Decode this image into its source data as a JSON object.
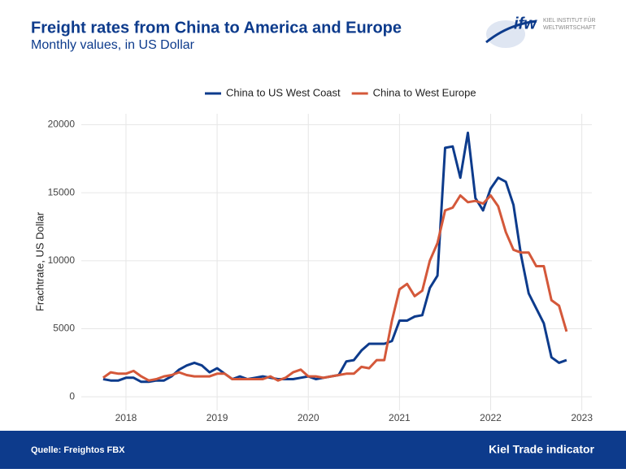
{
  "header": {
    "title": "Freight rates from China to America and Europe",
    "subtitle": "Monthly values, in US Dollar",
    "logo": "ifw",
    "logo_text_1": "KIEL INSTITUT FÜR",
    "logo_text_2": "WELTWIRTSCHAFT"
  },
  "footer": {
    "source": "Quelle: Freightos FBX",
    "brand": "Kiel Trade indicator"
  },
  "chart_data": {
    "type": "line",
    "ylabel": "Frachtrate, US Dollar",
    "grid": true,
    "legend": "top",
    "x": [
      2017.75,
      2017.833,
      2017.917,
      2018,
      2018.083,
      2018.167,
      2018.25,
      2018.333,
      2018.417,
      2018.5,
      2018.583,
      2018.667,
      2018.75,
      2018.833,
      2018.917,
      2019,
      2019.083,
      2019.167,
      2019.25,
      2019.333,
      2019.417,
      2019.5,
      2019.583,
      2019.667,
      2019.75,
      2019.833,
      2019.917,
      2020,
      2020.083,
      2020.167,
      2020.25,
      2020.333,
      2020.417,
      2020.5,
      2020.583,
      2020.667,
      2020.75,
      2020.833,
      2020.917,
      2021,
      2021.083,
      2021.167,
      2021.25,
      2021.333,
      2021.417,
      2021.5,
      2021.583,
      2021.667,
      2021.75,
      2021.833,
      2021.917,
      2022,
      2022.083,
      2022.167,
      2022.25,
      2022.333,
      2022.417,
      2022.5,
      2022.583,
      2022.667,
      2022.75,
      2022.833
    ],
    "series": [
      {
        "name": "China to US West Coast",
        "color": "#0d3b8c",
        "values": [
          1300,
          1200,
          1200,
          1400,
          1400,
          1100,
          1100,
          1200,
          1200,
          1500,
          2000,
          2300,
          2500,
          2300,
          1800,
          2100,
          1700,
          1300,
          1500,
          1300,
          1400,
          1500,
          1400,
          1300,
          1300,
          1300,
          1400,
          1500,
          1300,
          1400,
          1500,
          1600,
          2600,
          2700,
          3400,
          3900,
          3900,
          3900,
          4100,
          5600,
          5600,
          5900,
          6000,
          8000,
          8900,
          18300,
          18400,
          16100,
          19400,
          14600,
          13700,
          15300,
          16100,
          15800,
          14100,
          10400,
          7600,
          6500,
          5400,
          2900,
          2500,
          2700
        ]
      },
      {
        "name": "China to West Europe",
        "color": "#d4583a",
        "values": [
          1400,
          1800,
          1700,
          1700,
          1900,
          1500,
          1200,
          1300,
          1500,
          1600,
          1800,
          1600,
          1500,
          1500,
          1500,
          1700,
          1700,
          1300,
          1300,
          1300,
          1300,
          1300,
          1500,
          1200,
          1400,
          1800,
          2000,
          1500,
          1500,
          1400,
          1500,
          1600,
          1700,
          1700,
          2200,
          2100,
          2700,
          2700,
          5600,
          7900,
          8300,
          7400,
          7800,
          10000,
          11300,
          13700,
          13900,
          14800,
          14300,
          14400,
          14200,
          14800,
          14000,
          12100,
          10800,
          10600,
          10600,
          9600,
          9600,
          7100,
          6700,
          4800
        ]
      }
    ],
    "xlim": [
      2017.51,
      2023.11
    ],
    "xticks": [
      2018,
      2019,
      2020,
      2021,
      2022,
      2023
    ],
    "ylim": [
      -1000,
      20800
    ],
    "yticks": [
      0,
      5000,
      10000,
      15000,
      20000
    ]
  }
}
